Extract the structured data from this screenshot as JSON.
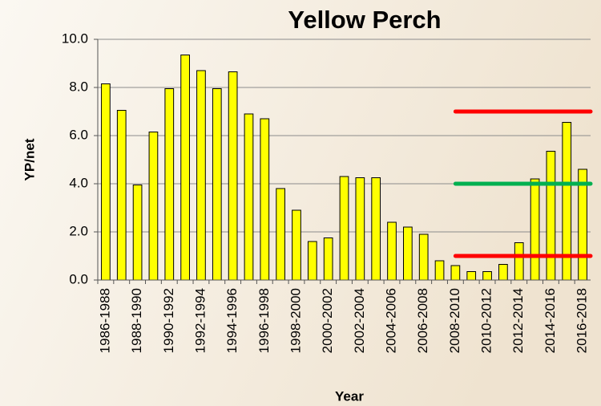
{
  "chart_data": {
    "type": "bar",
    "title": "Yellow Perch",
    "x_label": "Year",
    "y_label": "YP/net",
    "categories": [
      "1986-1988",
      null,
      "1988-1990",
      null,
      "1990-1992",
      null,
      "1992-1994",
      null,
      "1994-1996",
      null,
      "1996-1998",
      null,
      "1998-2000",
      null,
      "2000-2002",
      null,
      "2002-2004",
      null,
      "2004-2006",
      null,
      "2006-2008",
      null,
      "2008-2010",
      null,
      "2010-2012",
      null,
      "2012-2014",
      null,
      "2014-2016",
      null,
      "2016-2018"
    ],
    "values": [
      8.15,
      7.05,
      3.95,
      6.15,
      7.95,
      9.35,
      8.7,
      7.95,
      8.65,
      6.9,
      6.7,
      3.8,
      2.9,
      1.6,
      1.75,
      4.3,
      4.25,
      4.25,
      2.4,
      2.2,
      1.9,
      0.8,
      0.6,
      0.35,
      0.35,
      0.65,
      1.55,
      4.2,
      5.35,
      6.55,
      4.6
    ],
    "color": "#ffff00",
    "ylim": [
      0,
      10
    ],
    "yticks": [
      {
        "value": 0,
        "label": "0.0"
      },
      {
        "value": 2,
        "label": "2.0"
      },
      {
        "value": 4,
        "label": "4.0"
      },
      {
        "value": 6,
        "label": "6.0"
      },
      {
        "value": 8,
        "label": "8.0"
      },
      {
        "value": 10,
        "label": "10.0"
      }
    ],
    "grid": true,
    "reference_lines": [
      {
        "value": 7,
        "color": "#ff0000",
        "from": "2008-2010"
      },
      {
        "value": 4,
        "color": "#00b050",
        "from": "2008-2010"
      },
      {
        "value": 1,
        "color": "#ff0000",
        "from": "2008-2010"
      }
    ]
  }
}
